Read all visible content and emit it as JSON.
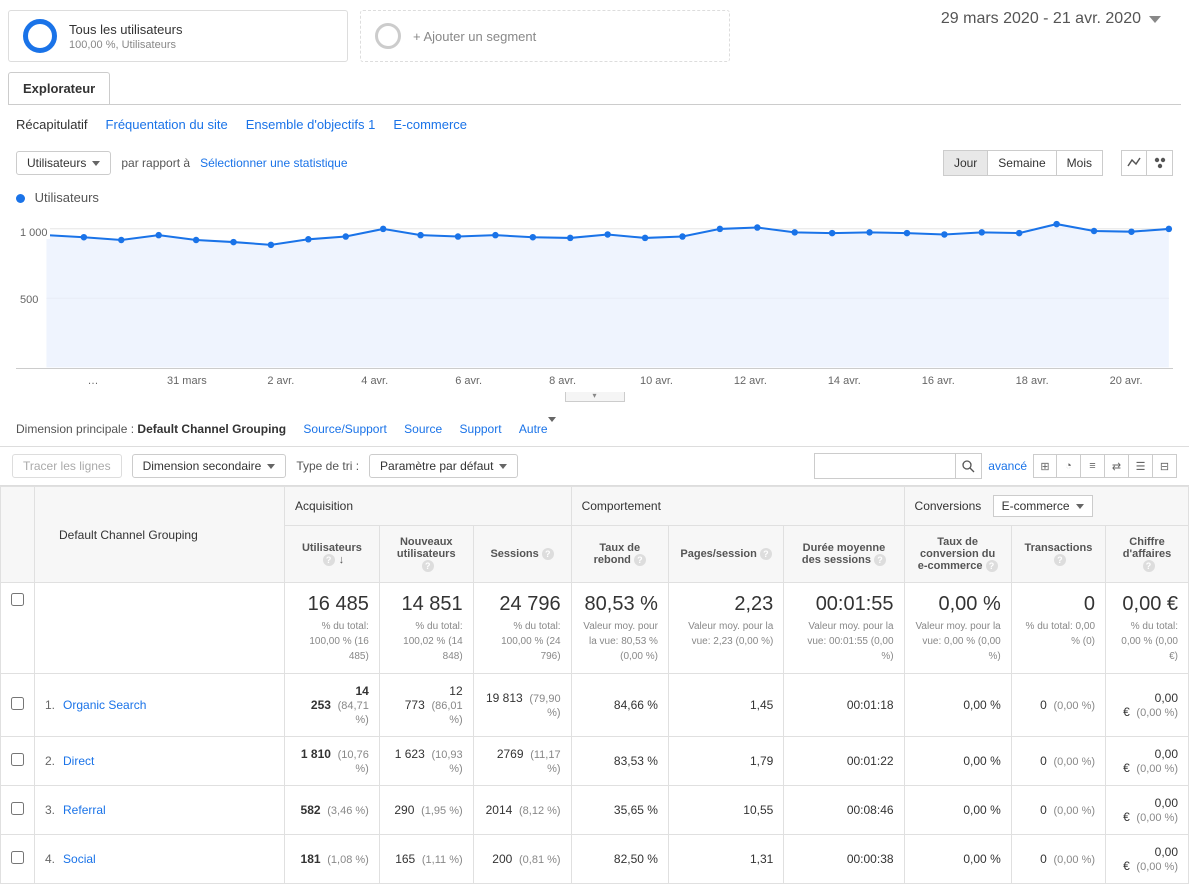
{
  "segments": {
    "all_users_title": "Tous les utilisateurs",
    "all_users_sub": "100,00 %, Utilisateurs",
    "add_label": "+ Ajouter un segment"
  },
  "date_range": "29 mars 2020 - 21 avr. 2020",
  "tabs": {
    "explorer": "Explorateur"
  },
  "subnav": {
    "recap": "Récapitulatif",
    "freq": "Fréquentation du site",
    "obj": "Ensemble d'objectifs 1",
    "ecom": "E-commerce"
  },
  "chart_controls": {
    "metric_dd": "Utilisateurs",
    "compare_label": "par rapport à",
    "select_stat": "Sélectionner une statistique",
    "granularity": {
      "day": "Jour",
      "week": "Semaine",
      "month": "Mois"
    }
  },
  "chart": {
    "legend": "Utilisateurs",
    "y_ticks": [
      "1 000",
      "500"
    ],
    "y_values": [
      1000,
      500
    ],
    "y_max": 1100,
    "x_labels": [
      "…",
      "31 mars",
      "2 avr.",
      "4 avr.",
      "6 avr.",
      "8 avr.",
      "10 avr.",
      "12 avr.",
      "14 avr.",
      "16 avr.",
      "18 avr.",
      "20 avr."
    ],
    "series": {
      "color": "#1a73e8",
      "fill": "#e8f0fe",
      "values": [
        955,
        940,
        920,
        955,
        920,
        905,
        885,
        925,
        945,
        1000,
        955,
        945,
        955,
        940,
        935,
        960,
        935,
        945,
        1000,
        1010,
        975,
        970,
        975,
        970,
        960,
        975,
        970,
        1035,
        985,
        980,
        1000
      ]
    }
  },
  "dimension_row": {
    "label": "Dimension principale :",
    "active": "Default Channel Grouping",
    "links": [
      "Source/Support",
      "Source",
      "Support",
      "Autre"
    ]
  },
  "toolbar": {
    "trace": "Tracer les lignes",
    "sec_dim": "Dimension secondaire",
    "sort_label": "Type de tri :",
    "sort_value": "Paramètre par défaut",
    "advanced": "avancé"
  },
  "table": {
    "dim_header": "Default Channel Grouping",
    "groups": {
      "acq": "Acquisition",
      "beh": "Comportement",
      "conv": "Conversions",
      "conv_dd": "E-commerce"
    },
    "columns": {
      "users": "Utilisateurs",
      "new_users": "Nouveaux utilisateurs",
      "sessions": "Sessions",
      "bounce": "Taux de rebond",
      "pps": "Pages/session",
      "duration": "Durée moyenne des sessions",
      "conv_rate": "Taux de conversion du e-commerce",
      "trans": "Transactions",
      "revenue": "Chiffre d'affaires"
    },
    "totals": {
      "users": "16 485",
      "users_sub": "% du total:\n100,00 % (16 485)",
      "new_users": "14 851",
      "new_users_sub": "% du total:\n100,02 % (14 848)",
      "sessions": "24 796",
      "sessions_sub": "% du total:\n100,00 % (24 796)",
      "bounce": "80,53 %",
      "bounce_sub": "Valeur moy. pour la vue: 80,53 % (0,00 %)",
      "pps": "2,23",
      "pps_sub": "Valeur moy. pour la vue: 2,23 (0,00 %)",
      "duration": "00:01:55",
      "duration_sub": "Valeur moy. pour la vue: 00:01:55 (0,00 %)",
      "conv_rate": "0,00 %",
      "conv_rate_sub": "Valeur moy. pour la vue: 0,00 % (0,00 %)",
      "trans": "0",
      "trans_sub": "% du total:\n0,00 % (0)",
      "revenue": "0,00 €",
      "revenue_sub": "% du total:\n0,00 % (0,00 €)"
    },
    "rows": [
      {
        "idx": "1.",
        "name": "Organic Search",
        "users": "14 253",
        "users_pct": "(84,71 %)",
        "new_users": "12 773",
        "new_users_pct": "(86,01 %)",
        "sessions": "19 813",
        "sessions_pct": "(79,90 %)",
        "bounce": "84,66 %",
        "pps": "1,45",
        "duration": "00:01:18",
        "conv_rate": "0,00 %",
        "trans": "0",
        "trans_pct": "(0,00 %)",
        "revenue": "0,00 €",
        "revenue_pct": "(0,00 %)"
      },
      {
        "idx": "2.",
        "name": "Direct",
        "users": "1 810",
        "users_pct": "(10,76 %)",
        "new_users": "1 623",
        "new_users_pct": "(10,93 %)",
        "sessions": "2769",
        "sessions_pct": "(11,17 %)",
        "bounce": "83,53 %",
        "pps": "1,79",
        "duration": "00:01:22",
        "conv_rate": "0,00 %",
        "trans": "0",
        "trans_pct": "(0,00 %)",
        "revenue": "0,00 €",
        "revenue_pct": "(0,00 %)"
      },
      {
        "idx": "3.",
        "name": "Referral",
        "users": "582",
        "users_pct": "(3,46 %)",
        "new_users": "290",
        "new_users_pct": "(1,95 %)",
        "sessions": "2014",
        "sessions_pct": "(8,12 %)",
        "bounce": "35,65 %",
        "pps": "10,55",
        "duration": "00:08:46",
        "conv_rate": "0,00 %",
        "trans": "0",
        "trans_pct": "(0,00 %)",
        "revenue": "0,00 €",
        "revenue_pct": "(0,00 %)"
      },
      {
        "idx": "4.",
        "name": "Social",
        "users": "181",
        "users_pct": "(1,08 %)",
        "new_users": "165",
        "new_users_pct": "(1,11 %)",
        "sessions": "200",
        "sessions_pct": "(0,81 %)",
        "bounce": "82,50 %",
        "pps": "1,31",
        "duration": "00:00:38",
        "conv_rate": "0,00 %",
        "trans": "0",
        "trans_pct": "(0,00 %)",
        "revenue": "0,00 €",
        "revenue_pct": "(0,00 %)"
      }
    ]
  }
}
